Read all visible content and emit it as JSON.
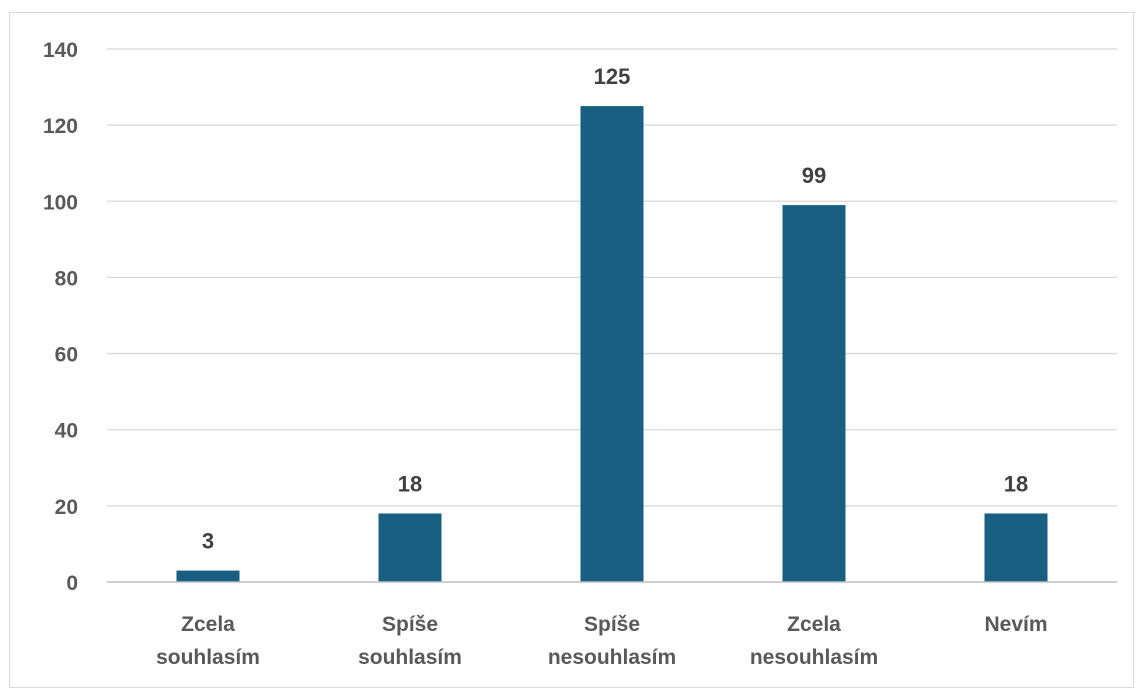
{
  "chart_data": {
    "type": "bar",
    "title": "",
    "xlabel": "",
    "ylabel": "",
    "categories": [
      [
        "Zcela",
        "souhlasím"
      ],
      [
        "Spíše",
        "souhlasím"
      ],
      [
        "Spíše",
        "nesouhlasím"
      ],
      [
        "Zcela",
        "nesouhlasím"
      ],
      [
        "Nevím"
      ]
    ],
    "values": [
      3,
      18,
      125,
      99,
      18
    ],
    "data_labels": [
      "3",
      "18",
      "125",
      "99",
      "18"
    ],
    "ylim": [
      0,
      140
    ],
    "yticks": [
      0,
      20,
      40,
      60,
      80,
      100,
      120,
      140
    ],
    "ytick_labels": [
      "0",
      "20",
      "40",
      "60",
      "80",
      "100",
      "120",
      "140"
    ],
    "grid": true,
    "legend": "none",
    "colors": {
      "bar": "#185f81",
      "grid": "#d9d9d9",
      "axis": "#bfbfbf"
    }
  }
}
